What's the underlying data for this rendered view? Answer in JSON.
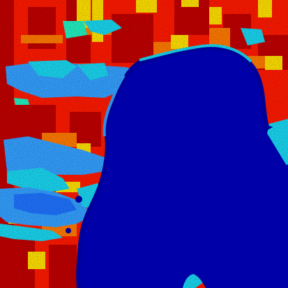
{
  "image": {
    "kind": "false-color classification / heat map",
    "palette": {
      "water": "#0000a8",
      "deep_red": "#c00000",
      "red": "#ff1a00",
      "orange": "#ff7a00",
      "yellow": "#ffe000",
      "cyan": "#19d6f0",
      "light_blue": "#34a0ff",
      "medium_blue": "#1f73ff",
      "green_cyan": "#22f0c0"
    }
  }
}
